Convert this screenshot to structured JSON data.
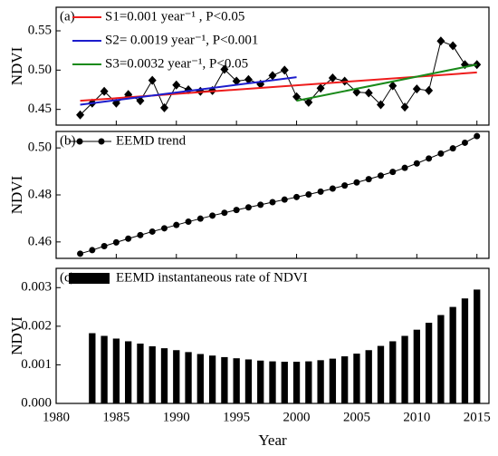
{
  "chart_data": [
    {
      "type": "line",
      "panel_label": "(a)",
      "ylabel": "NDVI",
      "x": [
        1982,
        1983,
        1984,
        1985,
        1986,
        1987,
        1988,
        1989,
        1990,
        1991,
        1992,
        1993,
        1994,
        1995,
        1996,
        1997,
        1998,
        1999,
        2000,
        2001,
        2002,
        2003,
        2004,
        2005,
        2006,
        2007,
        2008,
        2009,
        2010,
        2011,
        2012,
        2013,
        2014,
        2015
      ],
      "xlim": [
        1980,
        2016
      ],
      "xticks": [
        1980,
        1985,
        1990,
        1995,
        2000,
        2005,
        2010,
        2015
      ],
      "ylim": [
        0.43,
        0.58
      ],
      "yticks": [
        {
          "value": 0.45,
          "label": "0.45"
        },
        {
          "value": 0.5,
          "label": "0.50"
        },
        {
          "value": 0.55,
          "label": "0.55"
        }
      ],
      "series": [
        {
          "color": "#000000",
          "marker": "diamond",
          "values": [
            0.443,
            0.458,
            0.473,
            0.458,
            0.469,
            0.461,
            0.487,
            0.452,
            0.481,
            0.475,
            0.473,
            0.474,
            0.501,
            0.486,
            0.488,
            0.482,
            0.493,
            0.5,
            0.466,
            0.459,
            0.477,
            0.49,
            0.486,
            0.472,
            0.471,
            0.456,
            0.48,
            0.453,
            0.476,
            0.474,
            0.537,
            0.531,
            0.507,
            0.507
          ]
        },
        {
          "name": "S1=0.001 year⁻¹ , P<0.05",
          "color": "#ee1c1c",
          "x": [
            1982,
            2015
          ],
          "values": [
            0.461,
            0.497
          ]
        },
        {
          "name": "S2= 0.0019 year⁻¹, P<0.001",
          "color": "#1c1ccc",
          "x": [
            1982,
            2000
          ],
          "values": [
            0.456,
            0.491
          ]
        },
        {
          "name": "S3=0.0032 year⁻¹, P<0.05",
          "color": "#1a8a1a",
          "x": [
            2000,
            2015
          ],
          "values": [
            0.461,
            0.507
          ]
        }
      ]
    },
    {
      "type": "line",
      "panel_label": "(b)",
      "ylabel": "NDVI",
      "x": [
        1982,
        1983,
        1984,
        1985,
        1986,
        1987,
        1988,
        1989,
        1990,
        1991,
        1992,
        1993,
        1994,
        1995,
        1996,
        1997,
        1998,
        1999,
        2000,
        2001,
        2002,
        2003,
        2004,
        2005,
        2006,
        2007,
        2008,
        2009,
        2010,
        2011,
        2012,
        2013,
        2014,
        2015
      ],
      "xlim": [
        1980,
        2016
      ],
      "xticks": [
        1980,
        1985,
        1990,
        1995,
        2000,
        2005,
        2010,
        2015
      ],
      "ylim": [
        0.453,
        0.507
      ],
      "yticks": [
        0.46,
        0.48,
        {
          "value": 0.5,
          "label": "0.50"
        }
      ],
      "series": [
        {
          "name": "EEMD trend",
          "color": "#000000",
          "marker": "circle",
          "values": [
            0.455,
            0.4565,
            0.4582,
            0.4598,
            0.4614,
            0.4629,
            0.4644,
            0.4658,
            0.4672,
            0.4686,
            0.4699,
            0.4712,
            0.4724,
            0.4736,
            0.4747,
            0.4758,
            0.4769,
            0.478,
            0.4791,
            0.4802,
            0.4814,
            0.4827,
            0.484,
            0.4853,
            0.4867,
            0.4882,
            0.4898,
            0.4915,
            0.4934,
            0.4955,
            0.4976,
            0.4998,
            0.5022,
            0.505
          ]
        }
      ]
    },
    {
      "type": "bar",
      "panel_label": "(c)",
      "ylabel": "NDVI",
      "xlabel": "Year",
      "x": [
        1983,
        1984,
        1985,
        1986,
        1987,
        1988,
        1989,
        1990,
        1991,
        1992,
        1993,
        1994,
        1995,
        1996,
        1997,
        1998,
        1999,
        2000,
        2001,
        2002,
        2003,
        2004,
        2005,
        2006,
        2007,
        2008,
        2009,
        2010,
        2011,
        2012,
        2013,
        2014,
        2015
      ],
      "xlim": [
        1980,
        2016
      ],
      "xticks": [
        1980,
        1985,
        1990,
        1995,
        2000,
        2005,
        2010,
        2015
      ],
      "ylim": [
        0,
        0.0035
      ],
      "yticks": [
        {
          "value": 0,
          "label": "0.000"
        },
        {
          "value": 0.001,
          "label": "0.001"
        },
        {
          "value": 0.002,
          "label": "0.002"
        },
        {
          "value": 0.003,
          "label": "0.003"
        }
      ],
      "series": [
        {
          "name": "EEMD instantaneous rate of NDVI",
          "color": "#000000",
          "values": [
            0.00182,
            0.00175,
            0.00168,
            0.00161,
            0.00155,
            0.00148,
            0.00143,
            0.00138,
            0.00133,
            0.00128,
            0.00124,
            0.0012,
            0.00117,
            0.00114,
            0.00111,
            0.00109,
            0.00108,
            0.00108,
            0.00109,
            0.00112,
            0.00116,
            0.00122,
            0.00129,
            0.00138,
            0.00149,
            0.00161,
            0.00175,
            0.00191,
            0.00209,
            0.00229,
            0.0025,
            0.00272,
            0.00295
          ]
        }
      ]
    }
  ]
}
